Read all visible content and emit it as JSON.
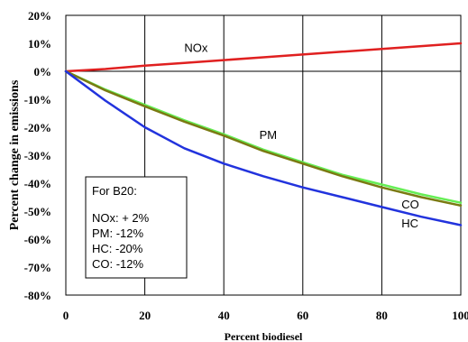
{
  "chart_data": {
    "type": "line",
    "title": "",
    "xlabel": "Percent biodiesel",
    "ylabel": "Percent change in emissions",
    "xlim": [
      0,
      100
    ],
    "ylim": [
      -80,
      20
    ],
    "xticks": [
      0,
      20,
      40,
      60,
      80,
      100
    ],
    "xtick_labels": [
      "0",
      "20",
      "40",
      "60",
      "80",
      "100"
    ],
    "yticks": [
      20,
      10,
      0,
      -10,
      -20,
      -30,
      -40,
      -50,
      -60,
      -70,
      -80
    ],
    "ytick_labels": [
      "20%",
      "10%",
      "0%",
      "-10%",
      "-20%",
      "-30%",
      "-40%",
      "-50%",
      "-60%",
      "-70%",
      "-80%"
    ],
    "grid": "vertical",
    "x": [
      0,
      10,
      20,
      30,
      40,
      50,
      60,
      70,
      80,
      90,
      100
    ],
    "series": [
      {
        "name": "NOx",
        "color": "#e02020",
        "values": [
          0,
          0.8,
          2,
          3,
          4,
          5,
          6,
          7,
          8,
          9,
          10
        ]
      },
      {
        "name": "PM",
        "color": "#66ee55",
        "values": [
          0,
          -6.5,
          -12,
          -17.5,
          -22.5,
          -28,
          -32.5,
          -37,
          -40.5,
          -44,
          -47
        ]
      },
      {
        "name": "CO",
        "color": "#7a7a12",
        "values": [
          0,
          -6.8,
          -12.5,
          -18,
          -23,
          -28.5,
          -33,
          -37.5,
          -41.5,
          -45,
          -48
        ]
      },
      {
        "name": "HC",
        "color": "#2233dd",
        "values": [
          0,
          -10.5,
          -20,
          -27.5,
          -33,
          -37.5,
          -41.5,
          -45,
          -48.5,
          -52,
          -55
        ]
      }
    ],
    "summary_box": {
      "title": "For B20:",
      "lines": [
        "NOx: + 2%",
        "PM:  -12%",
        "HC:  -20%",
        "CO:  -12%"
      ]
    }
  }
}
